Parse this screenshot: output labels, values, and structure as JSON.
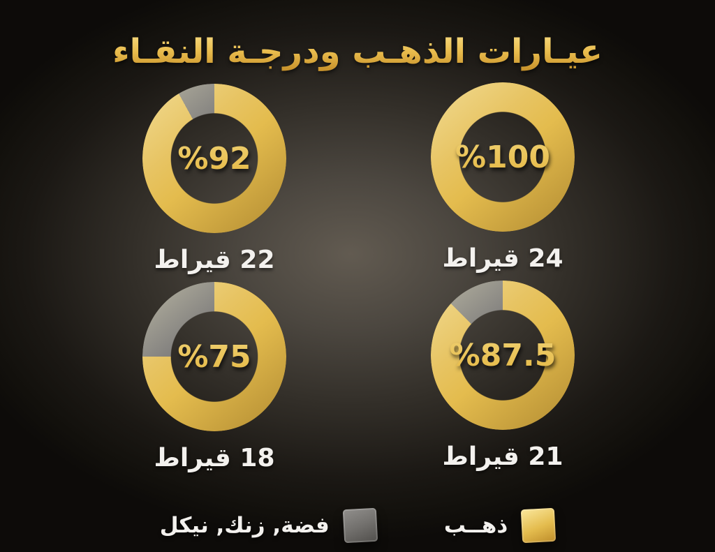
{
  "title": "عيـارات الذهـب ودرجـة النقـاء",
  "colors": {
    "gold": "#e4bc4e",
    "gold_light": "#f7e191",
    "gold_dark": "#c2922e",
    "alloy_gray": "#73716e",
    "alloy_gray_dark": "#54524f",
    "text_white": "#f3f1ee",
    "bg_center": "#625b51",
    "bg_edge": "#0d0b09"
  },
  "chart_data": {
    "type": "pie",
    "subtype": "donut-grid",
    "title": "عيـارات الذهـب ودرجـة النقـاء",
    "legend_position": "bottom",
    "series_names": [
      "ذهــب",
      "فضة, زنك, نيكل"
    ],
    "charts": [
      {
        "karat_label": "22 قيراط",
        "pct_label": "%92",
        "gold_pct": 92,
        "alloy_pct": 8
      },
      {
        "karat_label": "24 قيراط",
        "pct_label": "%100",
        "gold_pct": 100,
        "alloy_pct": 0
      },
      {
        "karat_label": "18 قيراط",
        "pct_label": "%75",
        "gold_pct": 75,
        "alloy_pct": 25
      },
      {
        "karat_label": "21 قيراط",
        "pct_label": "%87.5",
        "gold_pct": 87.5,
        "alloy_pct": 12.5
      }
    ]
  },
  "legend": {
    "gold_label": "ذهــب",
    "alloy_label": "فضة, زنك, نيكل"
  }
}
